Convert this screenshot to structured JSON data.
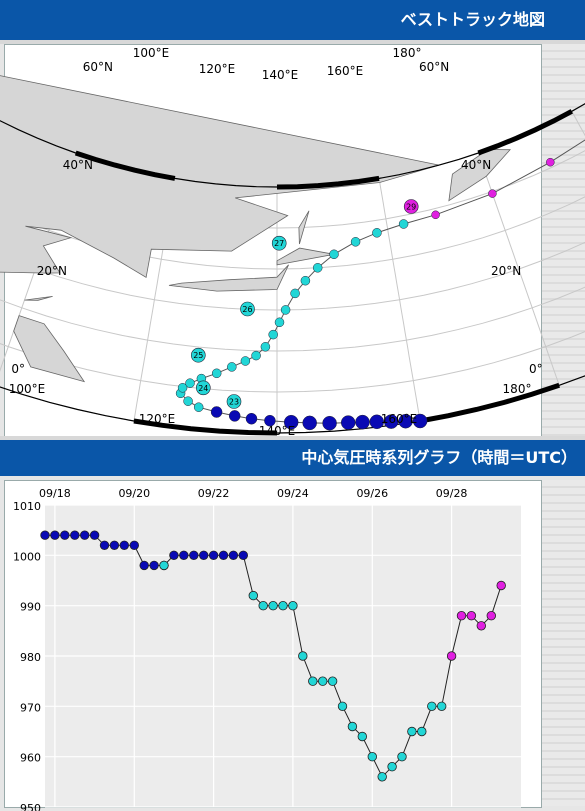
{
  "map_panel": {
    "title": "ベストトラック地図",
    "lon_labels_top": [
      "100°E",
      "120°E",
      "140°E",
      "160°E",
      "180°"
    ],
    "lon_labels_bottom": [
      "100°E",
      "120°E",
      "140°E",
      "160°E",
      "180°"
    ],
    "lat_labels_left": [
      "60°N",
      "40°N",
      "20°N",
      "0°"
    ],
    "lat_labels_right": [
      "60°N",
      "40°N",
      "20°N",
      "0°"
    ],
    "track_day_labels": [
      "23",
      "24",
      "25",
      "26",
      "27",
      "29"
    ],
    "colors": {
      "stage1": "#0a0ab4",
      "stage2": "#22d6d6",
      "stage3": "#e020e0",
      "land": "#d6d6d6"
    }
  },
  "chart_panel": {
    "title": "中心気圧時系列グラフ（時間＝UTC）"
  },
  "chart_data": {
    "type": "scatter",
    "title": "中心気圧時系列グラフ（時間＝UTC）",
    "x_tick_labels": [
      "09/18",
      "09/20",
      "09/22",
      "09/24",
      "09/26",
      "09/28"
    ],
    "y_tick_labels": [
      "1010",
      "1000",
      "990",
      "980",
      "970",
      "960",
      "950"
    ],
    "ylim": [
      950,
      1010
    ],
    "xlim": [
      "09/17 18:00",
      "09/29 18:00"
    ],
    "grid": true,
    "series": [
      {
        "color": "#0a0ab4",
        "x": [
          "09/17 18:00",
          "09/18 00:00",
          "09/18 06:00",
          "09/18 12:00",
          "09/18 18:00",
          "09/19 00:00",
          "09/19 06:00",
          "09/19 12:00",
          "09/19 18:00",
          "09/20 00:00",
          "09/20 06:00",
          "09/20 12:00",
          "09/20 18:00",
          "09/21 00:00",
          "09/21 06:00",
          "09/21 12:00",
          "09/21 18:00",
          "09/22 00:00",
          "09/22 06:00",
          "09/22 12:00",
          "09/22 18:00"
        ],
        "values": [
          1004,
          1004,
          1004,
          1004,
          1004,
          1004,
          1002,
          1002,
          1002,
          1002,
          998,
          998,
          998,
          1000,
          1000,
          1000,
          1000,
          1000,
          1000,
          1000,
          1000
        ]
      },
      {
        "color": "#22d6d6",
        "x": [
          "09/20 18:00",
          "09/23 00:00",
          "09/23 06:00",
          "09/23 12:00",
          "09/23 18:00",
          "09/24 00:00",
          "09/24 06:00",
          "09/24 12:00",
          "09/24 18:00",
          "09/25 00:00",
          "09/25 06:00",
          "09/25 12:00",
          "09/25 18:00",
          "09/26 00:00",
          "09/26 06:00",
          "09/26 12:00",
          "09/26 18:00",
          "09/27 00:00",
          "09/27 06:00",
          "09/27 12:00",
          "09/27 18:00"
        ],
        "values": [
          998,
          992,
          990,
          990,
          990,
          990,
          980,
          975,
          975,
          975,
          970,
          966,
          964,
          960,
          956,
          958,
          960,
          965,
          965,
          970,
          970
        ]
      },
      {
        "color": "#e020e0",
        "x": [
          "09/28 00:00",
          "09/28 06:00",
          "09/28 12:00",
          "09/28 18:00",
          "09/29 00:00",
          "09/29 06:00"
        ],
        "values": [
          980,
          988,
          988,
          986,
          988,
          994
        ]
      }
    ]
  }
}
